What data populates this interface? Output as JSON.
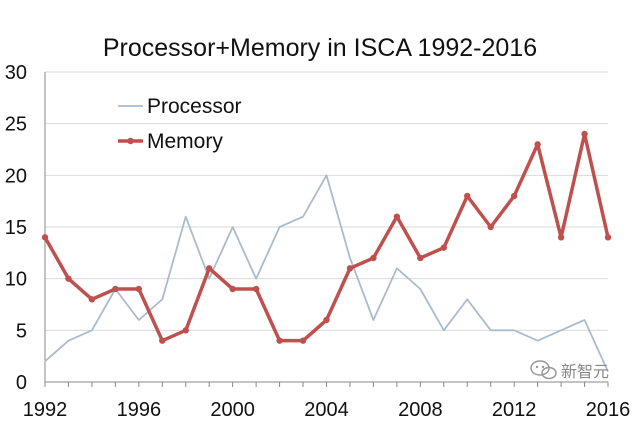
{
  "chart_data": {
    "type": "line",
    "title": "Processor+Memory in ISCA  1992-2016",
    "xlabel": "",
    "ylabel": "",
    "x": [
      1992,
      1993,
      1994,
      1995,
      1996,
      1997,
      1998,
      1999,
      2000,
      2001,
      2002,
      2003,
      2004,
      2005,
      2006,
      2007,
      2008,
      2009,
      2010,
      2011,
      2012,
      2013,
      2014,
      2015,
      2016
    ],
    "xlim": [
      1992,
      2016
    ],
    "ylim": [
      0,
      30
    ],
    "x_ticks": [
      1992,
      1996,
      2000,
      2004,
      2008,
      2012,
      2016
    ],
    "y_ticks": [
      0,
      5,
      10,
      15,
      20,
      25,
      30
    ],
    "grid": "horizontal",
    "legend_position": "top-left",
    "series": [
      {
        "name": "Processor",
        "color": "#a9bccd",
        "markers": false,
        "values": [
          2,
          4,
          5,
          9,
          6,
          8,
          16,
          10,
          15,
          10,
          15,
          16,
          20,
          12,
          6,
          11,
          9,
          5,
          8,
          5,
          5,
          4,
          5,
          6,
          1
        ]
      },
      {
        "name": "Memory",
        "color": "#c0504d",
        "markers": true,
        "values": [
          14,
          10,
          8,
          9,
          9,
          4,
          5,
          11,
          9,
          9,
          4,
          4,
          6,
          11,
          12,
          16,
          12,
          13,
          18,
          15,
          18,
          23,
          14,
          24,
          14
        ]
      }
    ]
  },
  "watermark": {
    "icon": "wechat-icon",
    "text": "新智元"
  }
}
